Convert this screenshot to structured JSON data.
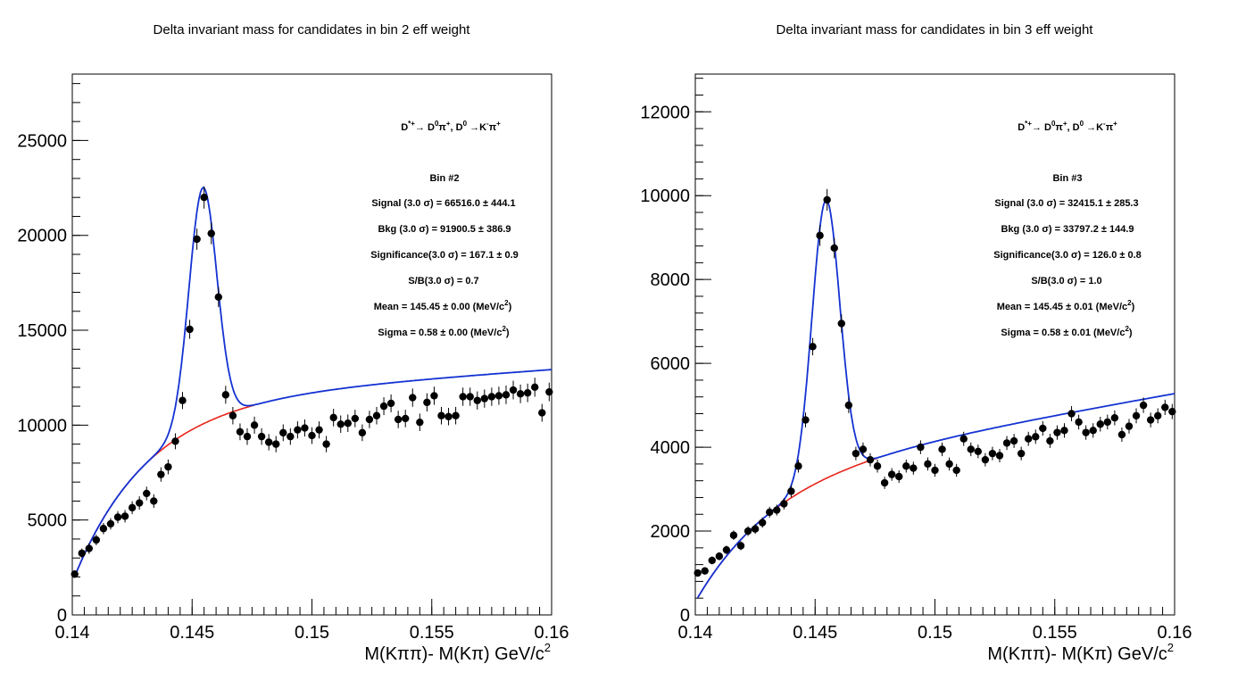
{
  "chart_data": [
    {
      "type": "scatter",
      "title": "Delta invariant mass for candidates in bin 2 eff weight",
      "xlabel": "M(Kππ)- M(Kπ) GeV/c",
      "xlabel_sup": "2",
      "xlim": [
        0.14,
        0.16
      ],
      "ylim": [
        0,
        28500
      ],
      "x_ticks": [
        0.14,
        0.145,
        0.15,
        0.155,
        0.16
      ],
      "x_tick_labels": [
        "0.14",
        "0.145",
        "0.15",
        "0.155",
        "0.16"
      ],
      "y_ticks": [
        0,
        5000,
        10000,
        15000,
        20000,
        25000
      ],
      "y_tick_labels": [
        "0",
        "5000",
        "10000",
        "15000",
        "20000",
        "25000"
      ],
      "decay": "D*+→ D0π+, D0 →K-π+",
      "stats": {
        "bin": "Bin #2",
        "signal": "Signal (3.0 σ) = 66516.0 ± 444.1",
        "bkg": "Bkg (3.0 σ) = 91900.5 ± 386.9",
        "significance": "Significance(3.0 σ) = 167.1 ± 0.9",
        "sb": "S/B(3.0 σ) = 0.7",
        "mean": "Mean = 145.45 ± 0.00 (MeV/c",
        "mean_sup": "2",
        "mean_end": ")",
        "sigma": "Sigma = 0.58 ± 0.00 (MeV/c",
        "sigma_sup": "2",
        "sigma_end": ")"
      },
      "fit": {
        "peak_mean": 0.14545,
        "peak_sigma": 0.00058,
        "peak_amp": 12450,
        "bkg_A": 12530,
        "bkg_B": 0.7,
        "bkg_thr": 0.1395
      },
      "series": [
        {
          "x": [
            0.1401,
            0.1404,
            0.1407,
            0.141,
            0.1413,
            0.1416,
            0.1419,
            0.1422,
            0.1425,
            0.1428,
            0.1431,
            0.1434,
            0.1437,
            0.144,
            0.1443,
            0.1446,
            0.1449,
            0.1452,
            0.1455,
            0.1458,
            0.1461,
            0.1464,
            0.1467,
            0.147,
            0.1473,
            0.1476,
            0.1479,
            0.1482,
            0.1485,
            0.1488,
            0.1491,
            0.1494,
            0.1497,
            0.15,
            0.1503,
            0.1506,
            0.1509,
            0.1512,
            0.1515,
            0.1518,
            0.1521,
            0.1524,
            0.1527,
            0.153,
            0.1533,
            0.1536,
            0.1539,
            0.1542,
            0.1545,
            0.1548,
            0.1551,
            0.1554,
            0.1557,
            0.156,
            0.1563,
            0.1566,
            0.1569,
            0.1572,
            0.1575,
            0.1578,
            0.1581,
            0.1584,
            0.1587,
            0.159,
            0.1593,
            0.1596,
            0.1599
          ],
          "y": [
            2150,
            3250,
            3500,
            3950,
            4550,
            4800,
            5150,
            5200,
            5650,
            5900,
            6400,
            6000,
            7400,
            7800,
            9150,
            11300,
            15050,
            19800,
            22000,
            20100,
            16750,
            11600,
            10500,
            9650,
            9400,
            10000,
            9400,
            9100,
            9000,
            9600,
            9400,
            9750,
            9850,
            9450,
            9750,
            9000,
            10400,
            10050,
            10100,
            10350,
            9600,
            10300,
            10500,
            11000,
            11150,
            10300,
            10350,
            11450,
            10150,
            11200,
            11550,
            10500,
            10450,
            10500,
            11500,
            11500,
            11300,
            11400,
            11500,
            11550,
            11600,
            11850,
            11650,
            11700,
            12000,
            10650,
            11750
          ],
          "err": [
            200,
            250,
            280,
            280,
            300,
            300,
            320,
            330,
            340,
            350,
            360,
            360,
            380,
            390,
            420,
            450,
            500,
            560,
            590,
            570,
            530,
            470,
            460,
            440,
            440,
            450,
            440,
            430,
            430,
            440,
            440,
            450,
            450,
            440,
            450,
            430,
            460,
            460,
            460,
            460,
            440,
            460,
            460,
            470,
            470,
            460,
            460,
            480,
            460,
            480,
            480,
            460,
            460,
            460,
            480,
            480,
            480,
            480,
            480,
            480,
            490,
            490,
            490,
            490,
            500,
            470,
            490
          ]
        }
      ]
    },
    {
      "type": "scatter",
      "title": "Delta invariant mass for candidates in bin 3 eff weight",
      "xlabel": "M(Kππ)- M(Kπ) GeV/c",
      "xlabel_sup": "2",
      "xlim": [
        0.14,
        0.16
      ],
      "ylim": [
        0,
        12900
      ],
      "x_ticks": [
        0.14,
        0.145,
        0.15,
        0.155,
        0.16
      ],
      "x_tick_labels": [
        "0.14",
        "0.145",
        "0.15",
        "0.155",
        "0.16"
      ],
      "y_ticks": [
        0,
        2000,
        4000,
        6000,
        8000,
        10000,
        12000
      ],
      "y_tick_labels": [
        "0",
        "2000",
        "4000",
        "6000",
        "8000",
        "10000",
        "12000"
      ],
      "decay": "D*+→ D0π+, D0 →K-π+",
      "stats": {
        "bin": "Bin #3",
        "signal": "Signal (3.0 σ) = 32415.1 ± 285.3",
        "bkg": "Bkg (3.0 σ) = 33797.2 ± 144.9",
        "significance": "Significance(3.0 σ) = 126.0 ± 0.8",
        "sb": "S/B(3.0 σ) = 1.0",
        "mean": "Mean = 145.45 ± 0.01 (MeV/c",
        "mean_sup": "2",
        "mean_end": ")",
        "sigma": "Sigma = 0.58 ± 0.01 (MeV/c",
        "sigma_sup": "2",
        "sigma_end": ")"
      },
      "fit": {
        "peak_mean": 0.14545,
        "peak_sigma": 0.00058,
        "peak_amp": 6640,
        "bkg_A": 4810,
        "bkg_B": 2.1,
        "bkg_thr": 0.1397
      },
      "series": [
        {
          "x": [
            0.1401,
            0.1404,
            0.1407,
            0.141,
            0.1413,
            0.1416,
            0.1419,
            0.1422,
            0.1425,
            0.1428,
            0.1431,
            0.1434,
            0.1437,
            0.144,
            0.1443,
            0.1446,
            0.1449,
            0.1452,
            0.1455,
            0.1458,
            0.1461,
            0.1464,
            0.1467,
            0.147,
            0.1473,
            0.1476,
            0.1479,
            0.1482,
            0.1485,
            0.1488,
            0.1491,
            0.1494,
            0.1497,
            0.15,
            0.1503,
            0.1506,
            0.1509,
            0.1512,
            0.1515,
            0.1518,
            0.1521,
            0.1524,
            0.1527,
            0.153,
            0.1533,
            0.1536,
            0.1539,
            0.1542,
            0.1545,
            0.1548,
            0.1551,
            0.1554,
            0.1557,
            0.156,
            0.1563,
            0.1566,
            0.1569,
            0.1572,
            0.1575,
            0.1578,
            0.1581,
            0.1584,
            0.1587,
            0.159,
            0.1593,
            0.1596,
            0.1599
          ],
          "y": [
            1000,
            1050,
            1300,
            1400,
            1550,
            1900,
            1650,
            2000,
            2050,
            2200,
            2450,
            2500,
            2650,
            2950,
            3550,
            4650,
            6400,
            9050,
            9900,
            8750,
            6950,
            5000,
            3850,
            3950,
            3700,
            3550,
            3150,
            3350,
            3300,
            3550,
            3500,
            4000,
            3600,
            3450,
            3950,
            3600,
            3450,
            4200,
            3950,
            3900,
            3700,
            3850,
            3800,
            4100,
            4150,
            3850,
            4200,
            4250,
            4450,
            4150,
            4350,
            4400,
            4800,
            4600,
            4350,
            4400,
            4550,
            4600,
            4700,
            4300,
            4500,
            4750,
            5000,
            4650,
            4750,
            4950,
            4850
          ]
        }
      ]
    }
  ]
}
